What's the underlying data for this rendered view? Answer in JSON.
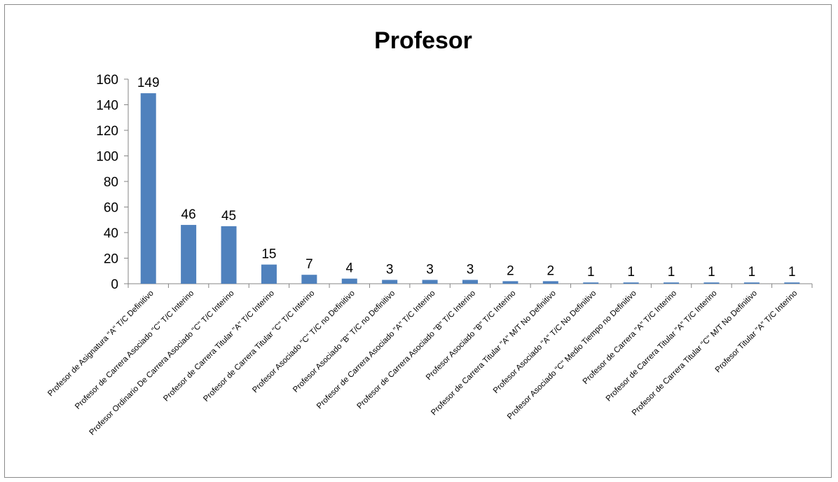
{
  "chart_data": {
    "type": "bar",
    "title": "Profesor",
    "xlabel": "",
    "ylabel": "",
    "ylim": [
      0,
      160
    ],
    "yticks": [
      0,
      20,
      40,
      60,
      80,
      100,
      120,
      140,
      160
    ],
    "grid": false,
    "legend": "none",
    "bar_color": "#4f81bd",
    "categories": [
      "Profesor de Asignatura \"A\" T/C Definitivo",
      "Profesor de Carrera Asociado \"C\" T/C Interino",
      "Profesor Ordinario De Carrera Asociado \"C\" T/C Interino",
      "Profesor de Carrera Titular \"A\" T/C Interino",
      "Profesor de Carrera Titular \"C\" T/C Interino",
      "Profesor Asociado \"C\" T/C no Definitivo",
      "Profesor Asociado \"B\" T/C no Definitivo",
      "Profesor de Carrera Asociado \"A\" T/C Interino",
      "Profesor de Carrera Asociado \"B\" T/C Interino",
      "Profesor Asociado \"B\" T/C  Interino",
      "Profesor de Carrera Titular \"A\" M/T No Definitivo",
      "Profesor Asociado \"A\" T/C No Definitivo",
      "Profesor Asociado \"C\" Medio Tiempo no Definitivo",
      "Profesor de Carrera \"A\" T/C Interino",
      "Profesor de Carrera Titular \"A\" T/C Interino",
      "Profesor de Carrera Titular \"C\" M/T No Definitivo",
      "Profesor Titular \"A\" T/C Interino"
    ],
    "values": [
      149,
      46,
      45,
      15,
      7,
      4,
      3,
      3,
      3,
      2,
      2,
      1,
      1,
      1,
      1,
      1,
      1
    ]
  }
}
